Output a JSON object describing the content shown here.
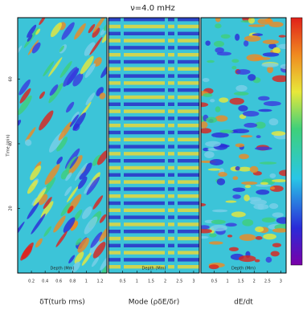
{
  "title": "ν=4.0 mHz",
  "chart_data": [
    {
      "type": "heatmap",
      "caption": "δT(turb rms)",
      "xlabel": "Depth (Mm)",
      "ylabel": "Time (min)",
      "xlim": [
        0,
        1.3
      ],
      "xticks": [
        0.2,
        0.4,
        0.6,
        0.8,
        1.0,
        1.2
      ],
      "ylim": [
        0,
        79
      ],
      "yticks": [
        20,
        40,
        60
      ]
    },
    {
      "type": "heatmap",
      "caption": "Mode (ρδE/δr)",
      "xlabel": "Depth (Mm)",
      "xlim": [
        0,
        3.2
      ],
      "xticks": [
        0.5,
        1.0,
        1.5,
        2.0,
        2.5,
        3.0
      ],
      "ylim": [
        0,
        79
      ]
    },
    {
      "type": "heatmap",
      "caption": "dE/dt",
      "xlabel": "Depth (Mm)",
      "xlim": [
        0,
        3.2
      ],
      "xticks": [
        0.5,
        1.0,
        1.5,
        2.0,
        2.5,
        3.0
      ],
      "ylim": [
        0,
        79
      ]
    }
  ]
}
